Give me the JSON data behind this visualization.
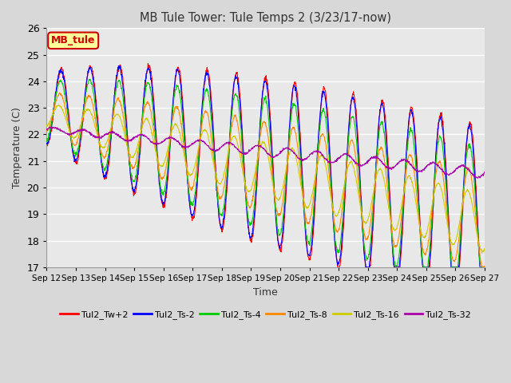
{
  "title": "MB Tule Tower: Tule Temps 2 (3/23/17-now)",
  "xlabel": "Time",
  "ylabel": "Temperature (C)",
  "ylim": [
    17.0,
    26.0
  ],
  "yticks": [
    17.0,
    18.0,
    19.0,
    20.0,
    21.0,
    22.0,
    23.0,
    24.0,
    25.0,
    26.0
  ],
  "x_labels": [
    "Sep 12",
    "Sep 13",
    "Sep 14",
    "Sep 15",
    "Sep 16",
    "Sep 17",
    "Sep 18",
    "Sep 19",
    "Sep 20",
    "Sep 21",
    "Sep 22",
    "Sep 23",
    "Sep 24",
    "Sep 25",
    "Sep 26",
    "Sep 27"
  ],
  "legend_box_color": "#ffff99",
  "legend_box_text": "MB_tule",
  "legend_box_text_color": "#cc0000",
  "series": [
    {
      "name": "Tul2_Tw+2",
      "color": "#ff0000"
    },
    {
      "name": "Tul2_Ts-2",
      "color": "#0000ff"
    },
    {
      "name": "Tul2_Ts-4",
      "color": "#00cc00"
    },
    {
      "name": "Tul2_Ts-8",
      "color": "#ff8800"
    },
    {
      "name": "Tul2_Ts-16",
      "color": "#cccc00"
    },
    {
      "name": "Tul2_Ts-32",
      "color": "#aa00aa"
    }
  ],
  "background_color": "#d8d8d8",
  "plot_background": "#e8e8e8",
  "grid_color": "#ffffff"
}
